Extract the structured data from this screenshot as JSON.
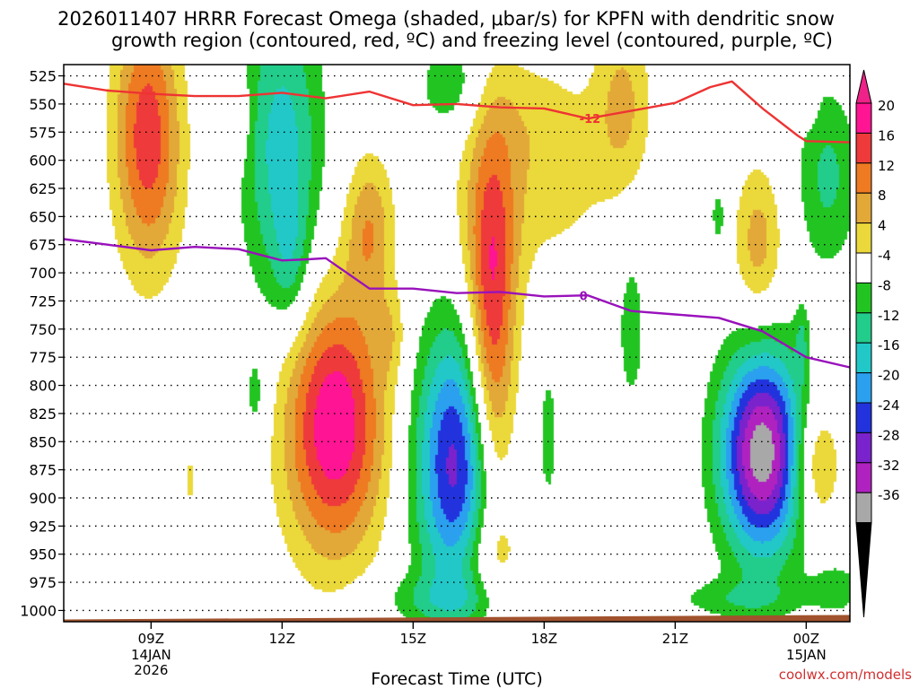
{
  "chart_data": {
    "type": "heatmap",
    "title_line1": "2026011407 HRRR Forecast Omega (shaded, μbar/s) for KPFN with dendritic snow",
    "title_line2": "growth region (contoured, red, ºC) and freezing level (contoured, purple, ºC)",
    "xlabel": "Forecast Time (UTC)",
    "ylabel": "",
    "credit": "coolwx.com/models",
    "x_range_hours": [
      7,
      25
    ],
    "x_ticks": [
      {
        "hour": 9,
        "label": "09Z",
        "sub1": "14JAN",
        "sub2": "2026"
      },
      {
        "hour": 12,
        "label": "12Z",
        "sub1": "",
        "sub2": ""
      },
      {
        "hour": 15,
        "label": "15Z",
        "sub1": "",
        "sub2": ""
      },
      {
        "hour": 18,
        "label": "18Z",
        "sub1": "",
        "sub2": ""
      },
      {
        "hour": 21,
        "label": "21Z",
        "sub1": "",
        "sub2": ""
      },
      {
        "hour": 24,
        "label": "00Z",
        "sub1": "15JAN",
        "sub2": ""
      }
    ],
    "y_range_hpa": [
      1010,
      515
    ],
    "y_ticks": [
      525,
      550,
      575,
      600,
      625,
      650,
      675,
      700,
      725,
      750,
      775,
      800,
      825,
      850,
      875,
      900,
      925,
      950,
      975,
      1000
    ],
    "colorbar": {
      "labels": [
        "20",
        "16",
        "12",
        "8",
        "4",
        "-4",
        "-8",
        "-12",
        "-16",
        "-20",
        "-24",
        "-28",
        "-32",
        "-36"
      ],
      "bins": [
        {
          "lo": 20,
          "hi": 24,
          "color": "#ff1493"
        },
        {
          "lo": 16,
          "hi": 20,
          "color": "#ee3a3a"
        },
        {
          "lo": 12,
          "hi": 16,
          "color": "#ee7a22"
        },
        {
          "lo": 8,
          "hi": 12,
          "color": "#e2a838"
        },
        {
          "lo": 4,
          "hi": 8,
          "color": "#ebd83a"
        },
        {
          "lo": -4,
          "hi": 4,
          "color": "#ffffff"
        },
        {
          "lo": -8,
          "hi": -4,
          "color": "#22c422"
        },
        {
          "lo": -12,
          "hi": -8,
          "color": "#22cc8a"
        },
        {
          "lo": -16,
          "hi": -12,
          "color": "#22c8c8"
        },
        {
          "lo": -20,
          "hi": -16,
          "color": "#2aa0ee"
        },
        {
          "lo": -24,
          "hi": -20,
          "color": "#2233dd"
        },
        {
          "lo": -28,
          "hi": -24,
          "color": "#7a22cc"
        },
        {
          "lo": -32,
          "hi": -28,
          "color": "#b022c0"
        },
        {
          "lo": -36,
          "hi": -32,
          "color": "#a8a8a8"
        }
      ],
      "over_color": "#ee2288",
      "under_color": "#000000"
    },
    "omega_features": [
      {
        "t": 8.9,
        "p": 560,
        "dt": 0.75,
        "dp": 115,
        "peak": 14
      },
      {
        "t": 9.0,
        "p": 620,
        "dt": 0.8,
        "dp": 100,
        "peak": 6
      },
      {
        "t": 9.9,
        "p": 885,
        "dt": 0.15,
        "dp": 30,
        "peak": 5
      },
      {
        "t": 11.0,
        "p": 565,
        "dt": 0.3,
        "dp": 40,
        "peak": 5
      },
      {
        "t": 12.0,
        "p": 590,
        "dt": 0.9,
        "dp": 140,
        "peak": -14
      },
      {
        "t": 12.2,
        "p": 690,
        "dt": 0.4,
        "dp": 60,
        "peak": -6
      },
      {
        "t": 13.2,
        "p": 835,
        "dt": 1.15,
        "dp": 115,
        "peak": 24
      },
      {
        "t": 11.4,
        "p": 810,
        "dt": 0.3,
        "dp": 45,
        "peak": -6
      },
      {
        "t": 14.0,
        "p": 660,
        "dt": 0.55,
        "dp": 65,
        "peak": 11
      },
      {
        "t": 14.5,
        "p": 755,
        "dt": 0.35,
        "dp": 40,
        "peak": 5
      },
      {
        "t": 16.0,
        "p": 870,
        "dt": 0.95,
        "dp": 120,
        "peak": -26
      },
      {
        "t": 15.6,
        "p": 990,
        "dt": 1.6,
        "dp": 22,
        "peak": -6
      },
      {
        "t": 16.8,
        "p": 760,
        "dt": 0.55,
        "dp": 170,
        "peak": 21
      },
      {
        "t": 16.9,
        "p": 650,
        "dt": 1.1,
        "dp": 75,
        "peak": 5
      },
      {
        "t": 15.9,
        "p": 535,
        "dt": 0.8,
        "dp": 45,
        "peak": -8
      },
      {
        "t": 16.8,
        "p": 950,
        "dt": 0.8,
        "dp": 40,
        "peak": 5
      },
      {
        "t": 17.2,
        "p": 560,
        "dt": 1.3,
        "dp": 60,
        "peak": 5
      },
      {
        "t": 19.8,
        "p": 550,
        "dt": 0.65,
        "dp": 80,
        "peak": 9
      },
      {
        "t": 18.5,
        "p": 610,
        "dt": 1.0,
        "dp": 80,
        "peak": 5
      },
      {
        "t": 18.1,
        "p": 845,
        "dt": 0.22,
        "dp": 65,
        "peak": -6
      },
      {
        "t": 20.0,
        "p": 750,
        "dt": 0.35,
        "dp": 80,
        "peak": -6
      },
      {
        "t": 22.0,
        "p": 650,
        "dt": 0.2,
        "dp": 30,
        "peak": -6
      },
      {
        "t": 22.9,
        "p": 675,
        "dt": 0.55,
        "dp": 70,
        "peak": 10
      },
      {
        "t": 23.0,
        "p": 860,
        "dt": 0.95,
        "dp": 90,
        "peak": -35
      },
      {
        "t": 22.4,
        "p": 990,
        "dt": 1.5,
        "dp": 18,
        "peak": -6
      },
      {
        "t": 23.9,
        "p": 760,
        "dt": 0.15,
        "dp": 30,
        "peak": -6
      },
      {
        "t": 24.5,
        "p": 615,
        "dt": 0.7,
        "dp": 80,
        "peak": -9
      },
      {
        "t": 24.2,
        "p": 870,
        "dt": 0.55,
        "dp": 55,
        "peak": 12
      },
      {
        "t": 24.1,
        "p": 540,
        "dt": 0.15,
        "dp": 25,
        "peak": 5
      },
      {
        "t": 24.7,
        "p": 980,
        "dt": 0.6,
        "dp": 25,
        "peak": -6
      }
    ],
    "red_contour": {
      "label": "-12",
      "label_hour": 19.05,
      "points": [
        {
          "t": 7.0,
          "p": 532
        },
        {
          "t": 8.0,
          "p": 538
        },
        {
          "t": 9.0,
          "p": 541
        },
        {
          "t": 10.0,
          "p": 543
        },
        {
          "t": 11.0,
          "p": 543
        },
        {
          "t": 12.0,
          "p": 540
        },
        {
          "t": 13.0,
          "p": 545
        },
        {
          "t": 14.0,
          "p": 539
        },
        {
          "t": 15.0,
          "p": 551
        },
        {
          "t": 16.0,
          "p": 550
        },
        {
          "t": 17.0,
          "p": 553
        },
        {
          "t": 18.0,
          "p": 554
        },
        {
          "t": 19.0,
          "p": 563
        },
        {
          "t": 20.0,
          "p": 556
        },
        {
          "t": 21.0,
          "p": 549
        },
        {
          "t": 21.8,
          "p": 535
        },
        {
          "t": 22.3,
          "p": 530
        },
        {
          "t": 23.0,
          "p": 554
        },
        {
          "t": 23.8,
          "p": 578
        },
        {
          "t": 24.0,
          "p": 583
        },
        {
          "t": 25.0,
          "p": 584
        }
      ]
    },
    "purple_contour": {
      "label": "0",
      "label_hour": 18.9,
      "points": [
        {
          "t": 7.0,
          "p": 670
        },
        {
          "t": 8.0,
          "p": 675
        },
        {
          "t": 9.0,
          "p": 680
        },
        {
          "t": 10.0,
          "p": 677
        },
        {
          "t": 11.0,
          "p": 679
        },
        {
          "t": 12.0,
          "p": 689
        },
        {
          "t": 12.6,
          "p": 688
        },
        {
          "t": 13.0,
          "p": 687
        },
        {
          "t": 14.0,
          "p": 714
        },
        {
          "t": 15.0,
          "p": 714
        },
        {
          "t": 16.0,
          "p": 718
        },
        {
          "t": 17.0,
          "p": 717
        },
        {
          "t": 18.0,
          "p": 721
        },
        {
          "t": 19.0,
          "p": 720
        },
        {
          "t": 20.0,
          "p": 734
        },
        {
          "t": 21.0,
          "p": 737
        },
        {
          "t": 22.0,
          "p": 740
        },
        {
          "t": 23.0,
          "p": 752
        },
        {
          "t": 24.0,
          "p": 775
        },
        {
          "t": 25.0,
          "p": 784
        }
      ]
    },
    "terrain": {
      "color": "#a0522d",
      "surface_p_left": 1008,
      "surface_p_right": 1004
    }
  }
}
